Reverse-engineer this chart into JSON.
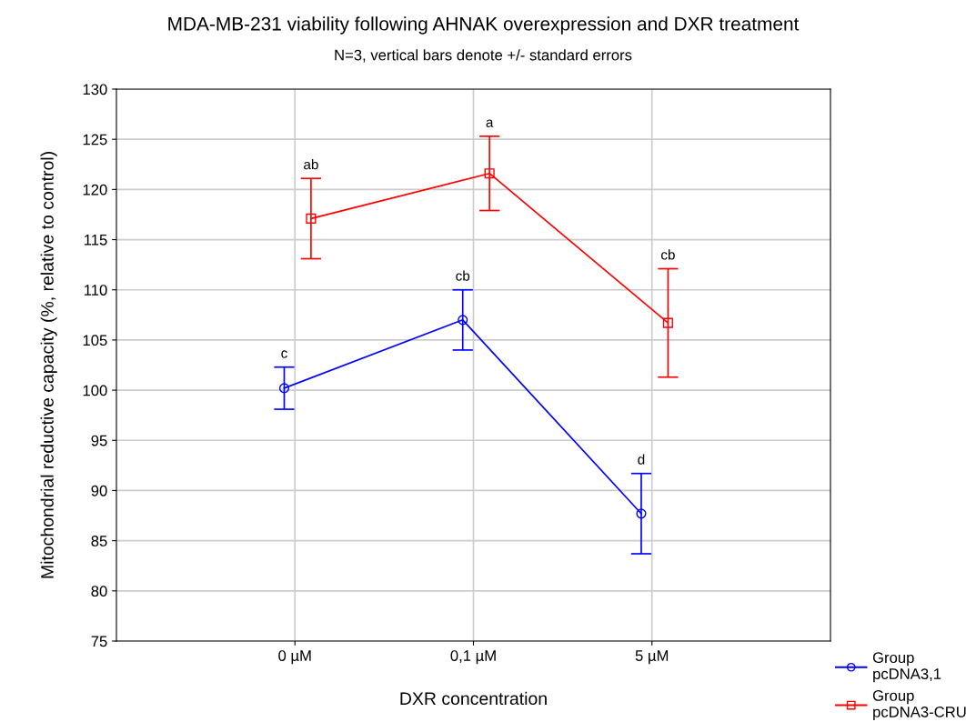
{
  "chart_data": {
    "type": "line",
    "title": "MDA-MB-231 viability following AHNAK overexpression and DXR treatment",
    "subtitle": "N=3, vertical bars denote +/- standard errors",
    "xlabel": "DXR concentration",
    "ylabel": "Mitochondrial reductive capacity (%, relative to control)",
    "categories": [
      "0 µM",
      "0,1 µM",
      "5 µM"
    ],
    "series": [
      {
        "name": "Group pcDNA3,1",
        "color": "#0000ff",
        "marker": "circle",
        "values": [
          100.2,
          107.0,
          87.7
        ],
        "errors": [
          2.1,
          3.0,
          4.0
        ]
      },
      {
        "name": "Group pcDNA3-CRU",
        "color": "#ff0000",
        "marker": "square",
        "values": [
          117.1,
          121.6,
          106.7
        ],
        "errors": [
          4.0,
          3.7,
          5.4
        ]
      }
    ],
    "annotations": [
      "c",
      "cb",
      "d",
      "ab",
      "a",
      "cb"
    ],
    "ylim": [
      75,
      130
    ],
    "yticks": [
      75,
      80,
      85,
      90,
      95,
      100,
      105,
      110,
      115,
      120,
      125,
      130
    ],
    "grid": true,
    "legend": "bottom right",
    "line_style": "solid"
  }
}
